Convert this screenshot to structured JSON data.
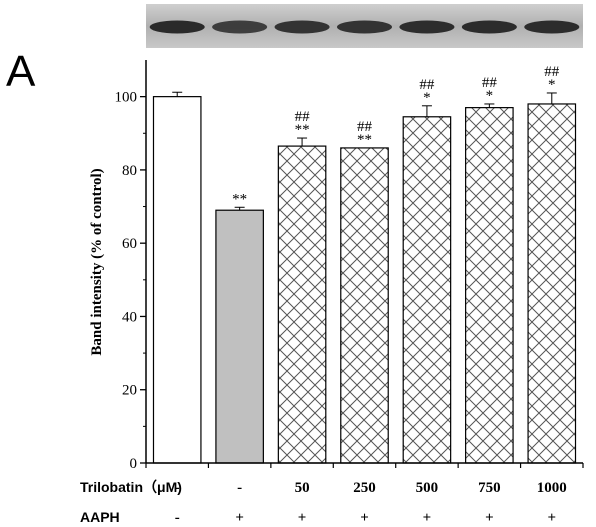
{
  "panel_label": "A",
  "chart_data": {
    "type": "bar",
    "ylabel": "Band intensity (% of control)",
    "ylim": [
      0,
      110
    ],
    "yticks": [
      0,
      20,
      40,
      60,
      80,
      100
    ],
    "grid": false,
    "values": [
      100,
      69,
      86.5,
      86,
      94.5,
      97,
      98
    ],
    "errors": [
      1.2,
      0.8,
      2.2,
      0,
      3.0,
      1.0,
      3.0
    ],
    "fills": [
      "white",
      "gray",
      "crosshatch",
      "crosshatch",
      "crosshatch",
      "crosshatch",
      "crosshatch"
    ],
    "annotations": [
      [
        "",
        ""
      ],
      [
        "**",
        ""
      ],
      [
        "##",
        "**"
      ],
      [
        "##",
        "**"
      ],
      [
        "##",
        "*"
      ],
      [
        "##",
        "*"
      ],
      [
        "##",
        "*"
      ]
    ],
    "condition_rows": [
      {
        "label": "Trilobatin（μM)",
        "values": [
          "-",
          "-",
          "50",
          "250",
          "500",
          "750",
          "1000"
        ]
      },
      {
        "label": "AAPH",
        "values": [
          "-",
          "+",
          "+",
          "+",
          "+",
          "+",
          "+"
        ]
      }
    ]
  },
  "colors": {
    "axis": "#000000",
    "gray_bar": "#c0c0c0",
    "hatch": "#555555",
    "blot_band": "#2a2a2a",
    "blot_bg": "#b8b8b8"
  }
}
